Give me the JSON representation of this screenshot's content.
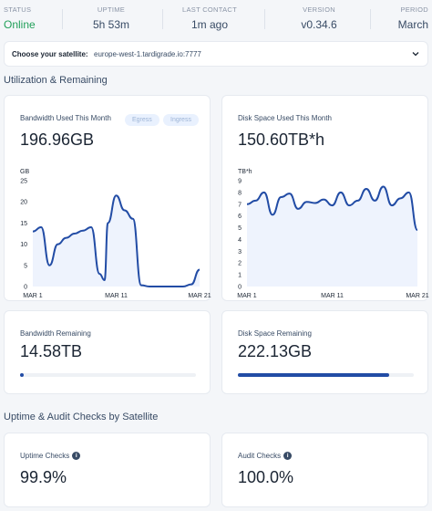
{
  "status": {
    "status": {
      "label": "STATUS",
      "value": "Online",
      "color": "#22a05a"
    },
    "uptime": {
      "label": "UPTIME",
      "value": "5h 53m"
    },
    "last_contact": {
      "label": "LAST CONTACT",
      "value": "1m ago"
    },
    "version": {
      "label": "VERSION",
      "value": "v0.34.6"
    },
    "period": {
      "label": "PERIOD",
      "value": "March"
    }
  },
  "satellite": {
    "label": "Choose your satellite:",
    "value": "europe-west-1.tardigrade.io:7777"
  },
  "section_utilization": "Utilization & Remaining",
  "bandwidth": {
    "title": "Bandwidth Used This Month",
    "value": "196.96GB",
    "egress": "Egress",
    "ingress": "Ingress"
  },
  "disk": {
    "title": "Disk Space Used This Month",
    "value": "150.60TB*h"
  },
  "bandwidth_remaining": {
    "title": "Bandwidth Remaining",
    "value": "14.58TB",
    "fill_fraction": 0.02
  },
  "disk_remaining": {
    "title": "Disk Space Remaining",
    "value": "222.13GB",
    "fill_fraction": 0.86
  },
  "section_uptime": "Uptime & Audit Checks by Satellite",
  "uptime_checks": {
    "title": "Uptime Checks",
    "value": "99.9%"
  },
  "audit_checks": {
    "title": "Audit Checks",
    "value": "100.0%"
  },
  "chart_data": [
    {
      "type": "area",
      "ylabel": "GB",
      "ylim": [
        0,
        25
      ],
      "yticks": [
        "0",
        "5",
        "10",
        "15",
        "20",
        "25"
      ],
      "xticks": [
        "MAR 1",
        "MAR 11",
        "MAR 21"
      ],
      "xlim": [
        1,
        21
      ],
      "series": [
        {
          "x": [
            1,
            2,
            3,
            4,
            5,
            6,
            7,
            8,
            9,
            9.6,
            10,
            11,
            12,
            13,
            14,
            15,
            17,
            19,
            20,
            21
          ],
          "values": [
            13,
            14,
            5,
            10,
            11.5,
            12.5,
            13.2,
            14,
            3,
            1.5,
            15,
            21.5,
            18,
            16,
            0.3,
            0,
            0,
            0,
            0.5,
            4
          ]
        }
      ],
      "color": "#224ca5"
    },
    {
      "type": "area",
      "ylabel": "TB*h",
      "ylim": [
        0,
        9
      ],
      "yticks": [
        "0",
        "1",
        "2",
        "3",
        "4",
        "5",
        "6",
        "7",
        "8",
        "9"
      ],
      "xticks": [
        "MAR 1",
        "MAR 11",
        "MAR 21"
      ],
      "xlim": [
        1,
        21
      ],
      "series": [
        {
          "x": [
            1,
            2,
            3,
            4,
            5,
            6,
            7,
            8,
            9,
            10,
            11,
            12,
            13,
            14,
            15,
            16,
            17,
            18,
            19,
            20,
            21
          ],
          "values": [
            7,
            7.3,
            8,
            6.1,
            7.6,
            7.9,
            6.6,
            7.2,
            7.1,
            7.4,
            6.9,
            8,
            6.9,
            7.3,
            8.3,
            7.3,
            8.5,
            6.9,
            7.5,
            8,
            4.8
          ]
        }
      ],
      "color": "#224ca5"
    }
  ]
}
